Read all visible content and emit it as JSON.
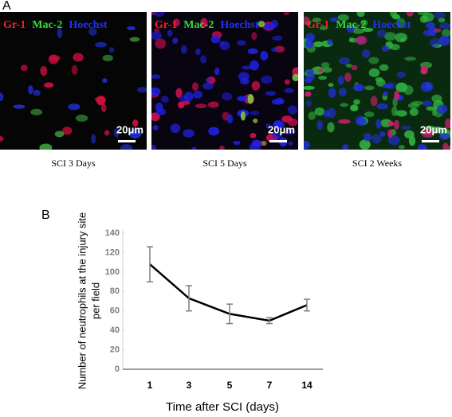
{
  "panel_a": {
    "label": "A",
    "images": [
      {
        "stains": [
          "Gr-1",
          "Mac-2",
          "Hoechst"
        ],
        "scale": "20μm",
        "caption": "SCI 3 Days"
      },
      {
        "stains": [
          "Gr-1",
          "Mac-2",
          "Hoechst"
        ],
        "scale": "20μm",
        "caption": "SCI 5 Days"
      },
      {
        "stains": [
          "Gr-1",
          "Mac-2",
          "Hoechst"
        ],
        "scale": "20μm",
        "caption": "SCI 2 Weeks"
      }
    ]
  },
  "panel_b": {
    "label": "B"
  },
  "chart_data": {
    "type": "line",
    "ylabel": [
      "Number of neutrophils at the injury site",
      "per field"
    ],
    "xlabel": "Time after SCI (days)",
    "categories": [
      "1",
      "3",
      "5",
      "7",
      "14"
    ],
    "values": [
      108,
      73,
      57,
      50,
      66
    ],
    "errors": [
      18,
      13,
      10,
      3,
      6
    ],
    "color": "#000000",
    "error_color": "#7f7f7f",
    "ylim": [
      0,
      140
    ],
    "yticks": [
      0,
      20,
      40,
      60,
      80,
      100,
      120,
      140
    ]
  }
}
